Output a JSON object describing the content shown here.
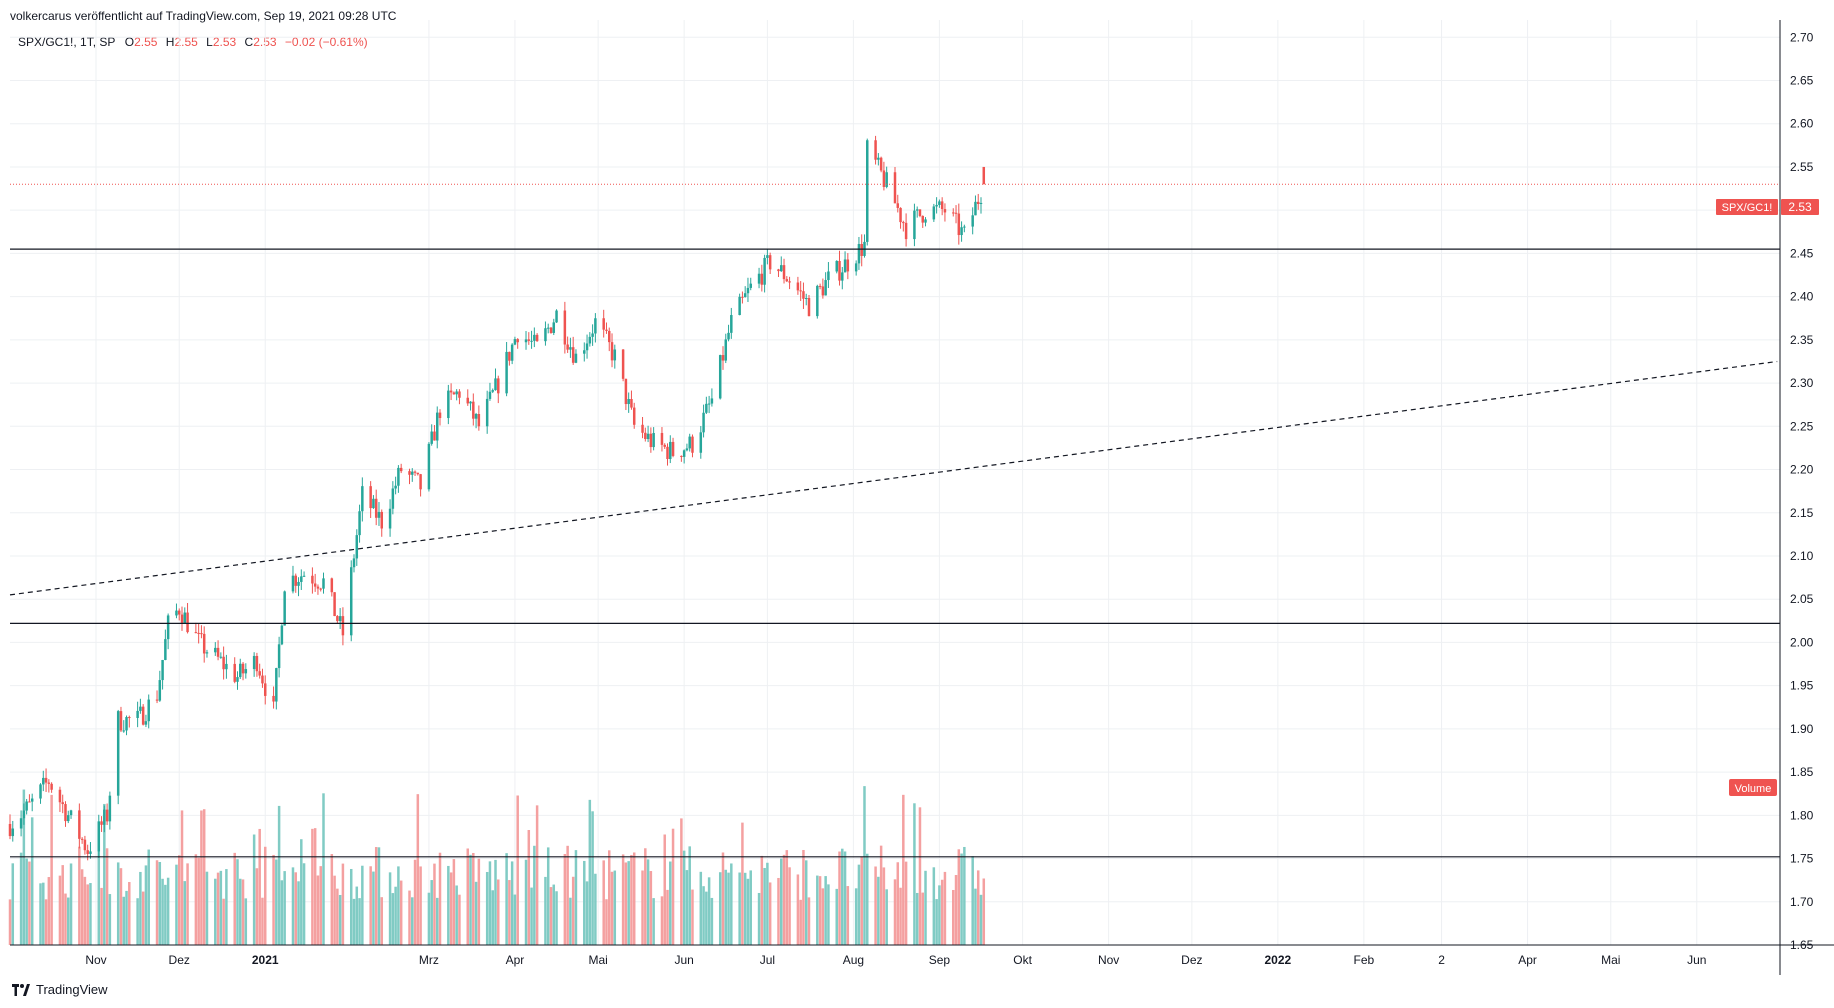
{
  "header": {
    "text": "volkercarus veröffentlicht auf TradingView.com, Sep 19, 2021 09:28 UTC"
  },
  "legend": {
    "symbol": "SPX/GC1!, 1T, SP",
    "open_label": "O",
    "open": "2.55",
    "high_label": "H",
    "high": "2.55",
    "low_label": "L",
    "low": "2.53",
    "close_label": "C",
    "close": "2.53",
    "change": "−0.02 (−0.61%)"
  },
  "price_label": {
    "symbol": "SPX/GC1!",
    "value": "2.53"
  },
  "volume_label": "Volume",
  "footer": {
    "brand": "TradingView"
  },
  "colors": {
    "up": "#26a69a",
    "down": "#ef5350",
    "up_vol": "#80cbc4",
    "down_vol": "#f4a0a0",
    "grid": "#eef0f3"
  },
  "chart_data": {
    "type": "candlestick",
    "title": "",
    "ylim": [
      1.65,
      2.72
    ],
    "y_ticks": [
      "2.70",
      "2.65",
      "2.60",
      "2.55",
      "2.50",
      "2.45",
      "2.40",
      "2.35",
      "2.30",
      "2.25",
      "2.20",
      "2.15",
      "2.10",
      "2.05",
      "2.00",
      "1.95",
      "1.90",
      "1.85",
      "1.80",
      "1.75",
      "1.70",
      "1.65"
    ],
    "x_ticks": [
      {
        "label": "Nov",
        "date": "2020-11-01"
      },
      {
        "label": "Dez",
        "date": "2020-12-01"
      },
      {
        "label": "2021",
        "date": "2021-01-01",
        "bold": true
      },
      {
        "label": "Mrz",
        "date": "2021-03-01"
      },
      {
        "label": "Apr",
        "date": "2021-04-01"
      },
      {
        "label": "Mai",
        "date": "2021-05-01"
      },
      {
        "label": "Jun",
        "date": "2021-06-01"
      },
      {
        "label": "Jul",
        "date": "2021-07-01"
      },
      {
        "label": "Aug",
        "date": "2021-08-01"
      },
      {
        "label": "Sep",
        "date": "2021-09-01"
      },
      {
        "label": "Okt",
        "date": "2021-10-01"
      },
      {
        "label": "Nov",
        "date": "2021-11-01"
      },
      {
        "label": "Dez",
        "date": "2021-12-01"
      },
      {
        "label": "2022",
        "date": "2022-01-01",
        "bold": true
      },
      {
        "label": "Feb",
        "date": "2022-02-01"
      },
      {
        "label": "2",
        "date": "2022-03-01"
      },
      {
        "label": "Apr",
        "date": "2022-04-01"
      },
      {
        "label": "Mai",
        "date": "2022-05-01"
      },
      {
        "label": "Jun",
        "date": "2022-06-01"
      }
    ],
    "anchors": [
      {
        "date": "2020-10-01",
        "close": 1.79
      },
      {
        "date": "2020-10-08",
        "close": 1.81
      },
      {
        "date": "2020-10-15",
        "close": 1.84
      },
      {
        "date": "2020-10-22",
        "close": 1.8
      },
      {
        "date": "2020-10-29",
        "close": 1.76
      },
      {
        "date": "2020-11-05",
        "close": 1.8
      },
      {
        "date": "2020-11-09",
        "close": 1.91
      },
      {
        "date": "2020-11-16",
        "close": 1.91
      },
      {
        "date": "2020-11-23",
        "close": 1.94
      },
      {
        "date": "2020-11-27",
        "close": 2.02
      },
      {
        "date": "2020-12-01",
        "close": 2.04
      },
      {
        "date": "2020-12-08",
        "close": 2.0
      },
      {
        "date": "2020-12-15",
        "close": 1.98
      },
      {
        "date": "2020-12-22",
        "close": 1.96
      },
      {
        "date": "2020-12-29",
        "close": 1.98
      },
      {
        "date": "2021-01-04",
        "close": 1.92
      },
      {
        "date": "2021-01-08",
        "close": 2.07
      },
      {
        "date": "2021-01-15",
        "close": 2.08
      },
      {
        "date": "2021-01-22",
        "close": 2.07
      },
      {
        "date": "2021-01-29",
        "close": 2.01
      },
      {
        "date": "2021-02-05",
        "close": 2.17
      },
      {
        "date": "2021-02-12",
        "close": 2.14
      },
      {
        "date": "2021-02-19",
        "close": 2.2
      },
      {
        "date": "2021-02-26",
        "close": 2.18
      },
      {
        "date": "2021-03-05",
        "close": 2.27
      },
      {
        "date": "2021-03-12",
        "close": 2.29
      },
      {
        "date": "2021-03-19",
        "close": 2.25
      },
      {
        "date": "2021-03-26",
        "close": 2.3
      },
      {
        "date": "2021-04-02",
        "close": 2.36
      },
      {
        "date": "2021-04-09",
        "close": 2.34
      },
      {
        "date": "2021-04-16",
        "close": 2.38
      },
      {
        "date": "2021-04-23",
        "close": 2.33
      },
      {
        "date": "2021-04-30",
        "close": 2.37
      },
      {
        "date": "2021-05-07",
        "close": 2.33
      },
      {
        "date": "2021-05-14",
        "close": 2.25
      },
      {
        "date": "2021-05-21",
        "close": 2.23
      },
      {
        "date": "2021-05-28",
        "close": 2.22
      },
      {
        "date": "2021-06-04",
        "close": 2.23
      },
      {
        "date": "2021-06-11",
        "close": 2.28
      },
      {
        "date": "2021-06-18",
        "close": 2.37
      },
      {
        "date": "2021-06-25",
        "close": 2.41
      },
      {
        "date": "2021-07-02",
        "close": 2.44
      },
      {
        "date": "2021-07-09",
        "close": 2.42
      },
      {
        "date": "2021-07-16",
        "close": 2.39
      },
      {
        "date": "2021-07-23",
        "close": 2.42
      },
      {
        "date": "2021-07-30",
        "close": 2.44
      },
      {
        "date": "2021-08-05",
        "close": 2.46
      },
      {
        "date": "2021-08-06",
        "close": 2.57
      },
      {
        "date": "2021-08-13",
        "close": 2.53
      },
      {
        "date": "2021-08-20",
        "close": 2.48
      },
      {
        "date": "2021-08-27",
        "close": 2.5
      },
      {
        "date": "2021-09-03",
        "close": 2.5
      },
      {
        "date": "2021-09-10",
        "close": 2.47
      },
      {
        "date": "2021-09-17",
        "close": 2.53
      }
    ],
    "horizontal_lines": [
      2.455,
      2.022,
      1.752
    ],
    "trend_line": {
      "start": {
        "date": "2020-10-01",
        "value": 2.055
      },
      "end": {
        "date": "2022-06-30",
        "value": 2.325
      },
      "style": "dashed"
    },
    "current_price": 2.53
  }
}
